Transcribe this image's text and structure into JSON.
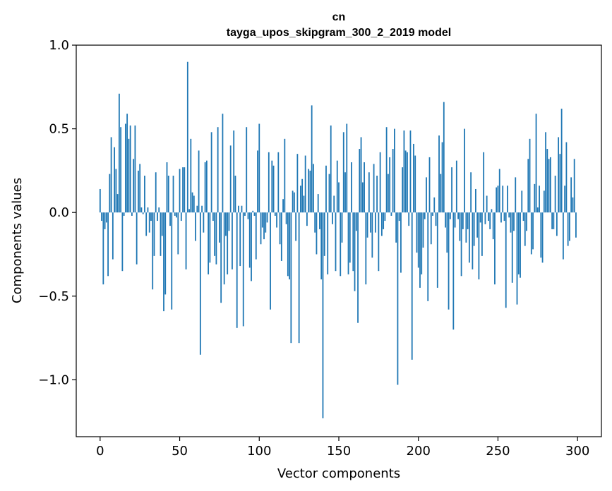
{
  "chart_data": {
    "type": "bar",
    "title": "cn",
    "subtitle": "tayga_upos_skipgram_300_2_2019 model",
    "xlabel": "Vector components",
    "ylabel": "Components values",
    "xlim": [
      -15,
      315
    ],
    "ylim": [
      -1.34,
      1.0
    ],
    "x_ticks": [
      0,
      50,
      100,
      150,
      200,
      250,
      300
    ],
    "x_tick_labels": [
      "0",
      "50",
      "100",
      "150",
      "200",
      "250",
      "300"
    ],
    "y_ticks": [
      1.0,
      0.5,
      0.0,
      -0.5,
      -1.0
    ],
    "y_tick_labels": [
      "1.0",
      "0.5",
      "0.0",
      "−0.5",
      "−1.0"
    ],
    "bar_color": "#1f77b4",
    "values": [
      0.14,
      -0.05,
      -0.43,
      -0.1,
      -0.06,
      -0.38,
      0.23,
      0.45,
      -0.28,
      0.39,
      0.26,
      0.11,
      0.71,
      0.51,
      -0.35,
      -0.02,
      0.53,
      0.59,
      0.44,
      0.52,
      -0.02,
      0.32,
      0.52,
      -0.31,
      0.25,
      0.29,
      0.03,
      -0.01,
      0.22,
      -0.14,
      0.03,
      -0.12,
      -0.05,
      -0.46,
      -0.26,
      0.24,
      -0.05,
      0.03,
      -0.26,
      -0.14,
      -0.59,
      -0.49,
      0.3,
      0.22,
      -0.08,
      -0.58,
      0.22,
      -0.02,
      -0.03,
      -0.25,
      0.26,
      -0.05,
      0.27,
      0.27,
      -0.34,
      0.9,
      0.02,
      0.44,
      0.12,
      0.1,
      -0.17,
      0.04,
      0.37,
      -0.85,
      0.04,
      -0.12,
      0.3,
      0.31,
      -0.37,
      -0.3,
      0.48,
      -0.05,
      -0.26,
      -0.31,
      0.51,
      -0.18,
      -0.54,
      0.59,
      -0.43,
      -0.14,
      -0.37,
      -0.11,
      0.4,
      -0.34,
      0.49,
      0.22,
      -0.69,
      0.04,
      -0.32,
      0.04,
      -0.68,
      -0.02,
      0.51,
      -0.04,
      -0.33,
      -0.41,
      0.01,
      -0.02,
      -0.28,
      0.37,
      0.53,
      -0.19,
      -0.09,
      -0.16,
      -0.12,
      -0.06,
      0.36,
      -0.58,
      0.31,
      0.28,
      -0.02,
      -0.09,
      0.36,
      -0.19,
      -0.29,
      0.08,
      0.44,
      -0.07,
      -0.38,
      -0.4,
      -0.78,
      0.13,
      0.12,
      -0.17,
      0.35,
      -0.78,
      0.16,
      0.2,
      0.1,
      0.34,
      -0.08,
      0.26,
      0.25,
      0.64,
      0.29,
      -0.12,
      -0.25,
      0.11,
      -0.1,
      -0.4,
      -1.23,
      -0.26,
      0.28,
      -0.37,
      0.23,
      0.52,
      -0.07,
      0.1,
      -0.35,
      0.31,
      0.18,
      -0.38,
      -0.18,
      0.48,
      0.24,
      0.53,
      -0.37,
      -0.3,
      0.3,
      -0.35,
      -0.47,
      -0.11,
      -0.66,
      0.38,
      0.45,
      0.18,
      0.3,
      -0.43,
      -0.15,
      0.24,
      -0.12,
      -0.27,
      0.29,
      -0.12,
      0.22,
      -0.35,
      0.36,
      -0.14,
      -0.1,
      -0.05,
      0.51,
      0.23,
      0.33,
      -0.02,
      0.38,
      0.5,
      -0.18,
      -1.03,
      -0.05,
      -0.36,
      0.27,
      0.49,
      0.37,
      0.36,
      -0.08,
      0.49,
      -0.88,
      0.41,
      0.34,
      -0.24,
      -0.33,
      -0.45,
      -0.37,
      -0.21,
      -0.04,
      0.21,
      -0.53,
      0.33,
      -0.19,
      -0.02,
      0.09,
      -0.08,
      -0.45,
      0.46,
      0.23,
      0.42,
      0.66,
      -0.09,
      -0.24,
      -0.58,
      -0.04,
      0.27,
      -0.7,
      -0.09,
      0.31,
      -0.04,
      -0.17,
      -0.38,
      -0.1,
      0.5,
      -0.18,
      -0.1,
      -0.3,
      0.24,
      -0.34,
      -0.2,
      0.14,
      -0.15,
      -0.4,
      -0.06,
      -0.26,
      0.36,
      -0.07,
      0.1,
      -0.05,
      -0.1,
      0.02,
      -0.16,
      -0.43,
      0.15,
      0.16,
      0.26,
      -0.06,
      0.16,
      -0.05,
      -0.57,
      0.16,
      -0.03,
      -0.12,
      -0.42,
      -0.11,
      0.21,
      -0.55,
      -0.37,
      -0.39,
      0.13,
      -0.05,
      -0.2,
      -0.11,
      0.32,
      0.44,
      -0.25,
      -0.22,
      0.17,
      0.59,
      0.03,
      0.16,
      -0.27,
      -0.3,
      0.13,
      0.48,
      0.38,
      0.32,
      0.33,
      -0.1,
      -0.1,
      0.22,
      -0.14,
      0.45,
      0.35,
      0.62,
      -0.28,
      0.16,
      0.42,
      -0.2,
      -0.17,
      0.21,
      0.09,
      0.32,
      -0.15
    ]
  }
}
